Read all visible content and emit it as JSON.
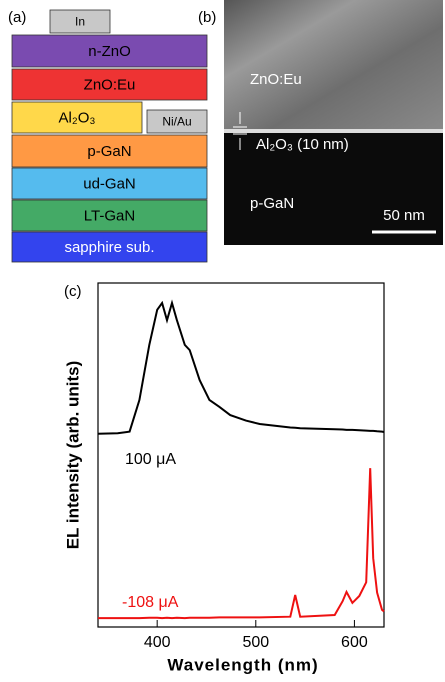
{
  "panel_a": {
    "label": "(a)",
    "layers": [
      {
        "text": "In",
        "color": "#c8c8c8"
      },
      {
        "text": "n-ZnO",
        "color": "#7a4bb0"
      },
      {
        "text": "ZnO:Eu",
        "color": "#ee3333"
      },
      {
        "text": "Al₂O₃",
        "color": "#ffd84a"
      },
      {
        "text": "Ni/Au",
        "color": "#c8c8c8"
      },
      {
        "text": "p-GaN",
        "color": "#ff9944"
      },
      {
        "text": "ud-GaN",
        "color": "#55bbee"
      },
      {
        "text": "LT-GaN",
        "color": "#44aa66"
      },
      {
        "text": "sapphire sub.",
        "color": "#3344ee"
      }
    ]
  },
  "panel_b": {
    "label": "(b)",
    "region_top": "ZnO:Eu",
    "interlayer": "Al₂O₃ (10 nm)",
    "region_bottom": "p-GaN",
    "scale_bar": "50 nm"
  },
  "chart_data": {
    "type": "line",
    "label": "(c)",
    "x_label": "Wavelength (nm)",
    "y_label": "EL intensity (arb. units)",
    "xlim": [
      340,
      630
    ],
    "xticks": [
      400,
      500,
      600
    ],
    "ylim": [
      0,
      10
    ],
    "x": [
      340,
      360,
      372,
      382,
      392,
      400,
      405,
      410,
      415,
      420,
      428,
      433,
      443,
      453,
      463,
      474,
      490,
      504,
      535,
      540,
      545,
      580,
      588,
      592,
      598,
      605,
      612,
      616,
      619,
      623,
      628,
      630
    ],
    "series": [
      {
        "name": "100 μA",
        "color": "#000000",
        "values": [
          5.62,
          5.63,
          5.68,
          6.6,
          8.2,
          9.22,
          9.42,
          8.92,
          9.42,
          8.92,
          8.2,
          8.05,
          7.18,
          6.6,
          6.4,
          6.16,
          6.0,
          5.9,
          5.8,
          5.79,
          5.78,
          5.75,
          5.74,
          5.73,
          5.73,
          5.72,
          5.71,
          5.7,
          5.7,
          5.69,
          5.68,
          5.67
        ]
      },
      {
        "name": "-108 μA",
        "color": "#ee1111",
        "values": [
          0.26,
          0.26,
          0.26,
          0.26,
          0.27,
          0.27,
          0.26,
          0.27,
          0.26,
          0.27,
          0.26,
          0.27,
          0.27,
          0.27,
          0.28,
          0.28,
          0.28,
          0.28,
          0.3,
          0.93,
          0.3,
          0.35,
          0.75,
          1.02,
          0.7,
          0.9,
          1.3,
          4.62,
          2.0,
          1.0,
          0.5,
          0.45
        ]
      }
    ]
  }
}
